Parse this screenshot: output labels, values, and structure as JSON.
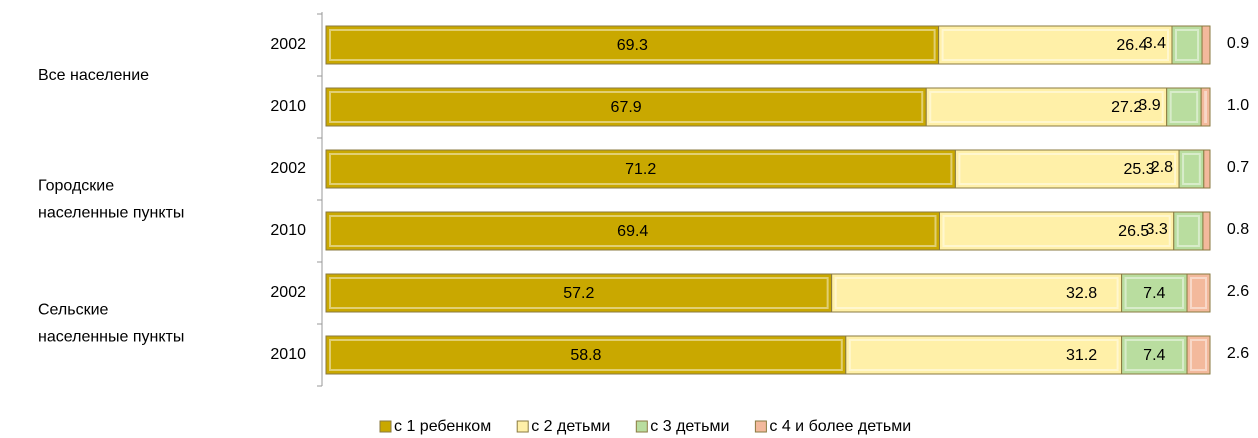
{
  "chart_data": {
    "type": "stacked-bar-horizontal",
    "groups": [
      [
        "Все население"
      ],
      [
        "Городские",
        "населенные пункты"
      ],
      [
        "Сельские",
        "населенные пункты"
      ]
    ],
    "categories": [
      "2002",
      "2010",
      "2002",
      "2010",
      "2002",
      "2010"
    ],
    "xlim": [
      0,
      100
    ],
    "series": [
      {
        "name": "с 1 ребенком",
        "color": "#c9a800",
        "values": [
          69.3,
          67.9,
          71.2,
          69.4,
          57.2,
          58.8
        ],
        "value_labels": [
          "69.3",
          "67.9",
          "71.2",
          "69.4",
          "57.2",
          "58.8"
        ]
      },
      {
        "name": "с 2 детьми",
        "color": "#fff0a8",
        "values": [
          26.4,
          27.2,
          25.3,
          26.5,
          32.8,
          31.2
        ],
        "value_labels": [
          "26.4",
          "27.2",
          "25.3",
          "26.5",
          "32.8",
          "31.2"
        ]
      },
      {
        "name": "с 3 детьми",
        "color": "#b9dd9f",
        "values": [
          3.4,
          3.9,
          2.8,
          3.3,
          7.4,
          7.4
        ],
        "value_labels": [
          "3.4",
          "3.9",
          "2.8",
          "3.3",
          "7.4",
          "7.4"
        ]
      },
      {
        "name": "с 4 и более детьми",
        "color": "#f3b99c",
        "values": [
          0.9,
          1.0,
          0.7,
          0.8,
          2.6,
          2.6
        ],
        "value_labels": [
          "0.9",
          "1.0",
          "0.7",
          "0.8",
          "2.6",
          "2.6"
        ]
      }
    ]
  }
}
